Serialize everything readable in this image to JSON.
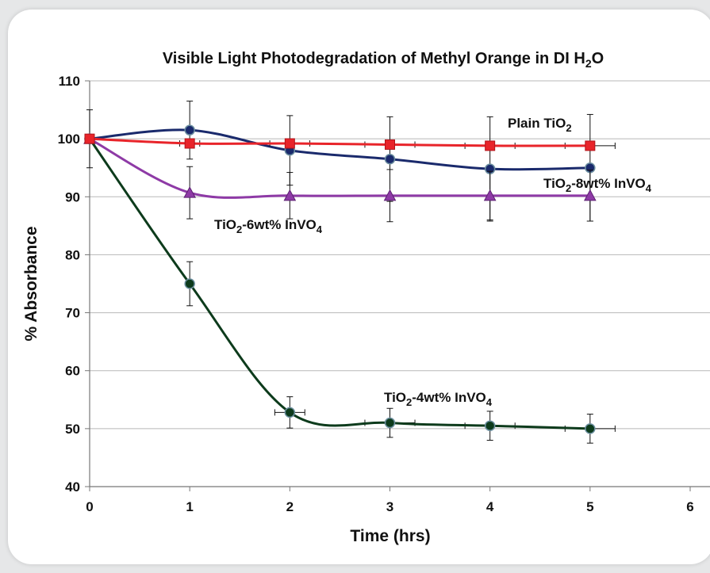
{
  "chart_data": {
    "type": "line",
    "title": {
      "pre": "Visible Light Photodegradation of Methyl Orange in DI H",
      "sub": "2",
      "post": "O"
    },
    "xlabel": "Time (hrs)",
    "ylabel": "% Absorbance",
    "xlim": [
      0,
      6
    ],
    "ylim": [
      40,
      110
    ],
    "x_ticks": [
      "0",
      "1",
      "2",
      "3",
      "4",
      "5",
      "6"
    ],
    "y_ticks": [
      "40",
      "50",
      "60",
      "70",
      "80",
      "90",
      "100",
      "110"
    ],
    "grid": "horizontal",
    "series": [
      {
        "key": "plain",
        "label": {
          "pre": "Plain TiO",
          "sub": "2",
          "post": ""
        },
        "color": "#e8242a",
        "marker": "square",
        "x": [
          0,
          1,
          2,
          3,
          4,
          5
        ],
        "y": [
          100,
          99.2,
          99.2,
          99,
          98.8,
          98.8
        ],
        "xerr": [
          0,
          0.1,
          0.2,
          0.25,
          0.25,
          0.25
        ],
        "yerr": [
          0,
          0,
          0,
          0,
          0,
          0
        ]
      },
      {
        "key": "8wt",
        "label": {
          "pre": "TiO",
          "sub": "2",
          "post": "-8wt% InVO",
          "sub2": "4"
        },
        "color": "#1a2a6c",
        "marker": "circle",
        "x": [
          0,
          1,
          2,
          3,
          4,
          5
        ],
        "y": [
          100,
          101.5,
          98,
          96.5,
          94.8,
          95
        ],
        "xerr": [
          0,
          0,
          0,
          0,
          0,
          0
        ],
        "yerr": [
          5,
          5,
          6,
          7.3,
          9,
          9.2
        ]
      },
      {
        "key": "6wt",
        "label": {
          "pre": "TiO",
          "sub": "2",
          "post": "-6wt% InVO",
          "sub2": "4"
        },
        "color": "#8e3aa6",
        "marker": "triangle",
        "x": [
          0,
          1,
          2,
          3,
          4,
          5
        ],
        "y": [
          100,
          90.7,
          90.2,
          90.2,
          90.2,
          90.2
        ],
        "xerr": [
          0,
          0,
          0,
          0,
          0,
          0
        ],
        "yerr": [
          0,
          4.5,
          4,
          4.5,
          4.2,
          4.4
        ]
      },
      {
        "key": "4wt",
        "label": {
          "pre": "TiO",
          "sub": "2",
          "post": "-4wt% InVO",
          "sub2": "4"
        },
        "color": "#0d3b1c",
        "marker": "circle",
        "x": [
          0,
          1,
          2,
          3,
          4,
          5
        ],
        "y": [
          100,
          75,
          52.8,
          51,
          50.5,
          50
        ],
        "xerr": [
          0,
          0,
          0.15,
          0.25,
          0.25,
          0.25
        ],
        "yerr": [
          0,
          3.8,
          2.7,
          2.5,
          2.5,
          2.5
        ]
      }
    ]
  }
}
